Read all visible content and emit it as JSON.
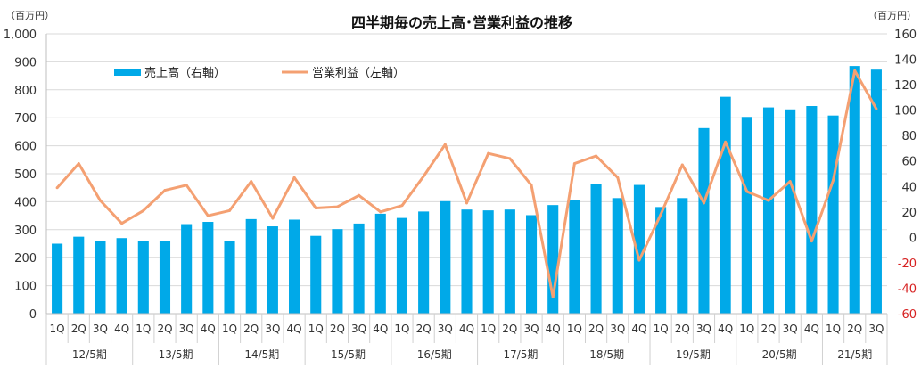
{
  "chart_data": {
    "type": "bar+line",
    "title": "四半期毎の売上高･営業利益の推移",
    "left_axis": {
      "unit": "（百万円）",
      "range": [
        0,
        1000
      ],
      "ticks": [
        "0",
        "100",
        "200",
        "300",
        "400",
        "500",
        "600",
        "700",
        "800",
        "900",
        "1,000"
      ]
    },
    "right_axis": {
      "unit": "（百万円）",
      "range": [
        -60,
        160
      ],
      "ticks": [
        {
          "label": "-60",
          "color": "#d61f1f"
        },
        {
          "label": "-40",
          "color": "#d61f1f"
        },
        {
          "label": "-20",
          "color": "#d61f1f"
        },
        {
          "label": "0",
          "color": "#333333"
        },
        {
          "label": "20",
          "color": "#333333"
        },
        {
          "label": "40",
          "color": "#333333"
        },
        {
          "label": "60",
          "color": "#333333"
        },
        {
          "label": "80",
          "color": "#333333"
        },
        {
          "label": "100",
          "color": "#333333"
        },
        {
          "label": "120",
          "color": "#333333"
        },
        {
          "label": "140",
          "color": "#333333"
        },
        {
          "label": "160",
          "color": "#333333"
        }
      ]
    },
    "grid": true,
    "legend_position": "top-left",
    "quarters": [
      "1Q",
      "2Q",
      "3Q",
      "4Q",
      "1Q",
      "2Q",
      "3Q",
      "4Q",
      "1Q",
      "2Q",
      "3Q",
      "4Q",
      "1Q",
      "2Q",
      "3Q",
      "4Q",
      "1Q",
      "2Q",
      "3Q",
      "4Q",
      "1Q",
      "2Q",
      "3Q",
      "4Q",
      "1Q",
      "2Q",
      "3Q",
      "4Q",
      "1Q",
      "2Q",
      "3Q",
      "4Q",
      "1Q",
      "2Q",
      "3Q",
      "4Q",
      "1Q",
      "2Q",
      "3Q"
    ],
    "periods": [
      {
        "label": "12/5期",
        "count": 4
      },
      {
        "label": "13/5期",
        "count": 4
      },
      {
        "label": "14/5期",
        "count": 4
      },
      {
        "label": "15/5期",
        "count": 4
      },
      {
        "label": "16/5期",
        "count": 4
      },
      {
        "label": "17/5期",
        "count": 4
      },
      {
        "label": "18/5期",
        "count": 4
      },
      {
        "label": "19/5期",
        "count": 4
      },
      {
        "label": "20/5期",
        "count": 4
      },
      {
        "label": "21/5期",
        "count": 3
      }
    ],
    "series": [
      {
        "name": "売上高（右軸）",
        "kind": "bar",
        "axis": "left",
        "color": "#00a9e8",
        "values": [
          250,
          275,
          260,
          270,
          260,
          260,
          320,
          328,
          260,
          338,
          312,
          336,
          278,
          302,
          322,
          357,
          342,
          365,
          402,
          372,
          369,
          372,
          352,
          388,
          405,
          462,
          413,
          460,
          381,
          413,
          663,
          775,
          703,
          737,
          730,
          742,
          708,
          885,
          872
        ]
      },
      {
        "name": "営業利益（左軸）",
        "kind": "line",
        "axis": "right",
        "color": "#f4a072",
        "values": [
          39,
          58,
          29,
          11,
          21,
          37,
          41,
          17,
          21,
          44,
          15,
          47,
          23,
          24,
          33,
          20,
          25,
          48,
          73,
          27,
          66,
          62,
          41,
          -47,
          58,
          64,
          47,
          -18,
          18,
          57,
          27,
          75,
          36,
          29,
          44,
          -3,
          45,
          131,
          101
        ]
      }
    ]
  }
}
